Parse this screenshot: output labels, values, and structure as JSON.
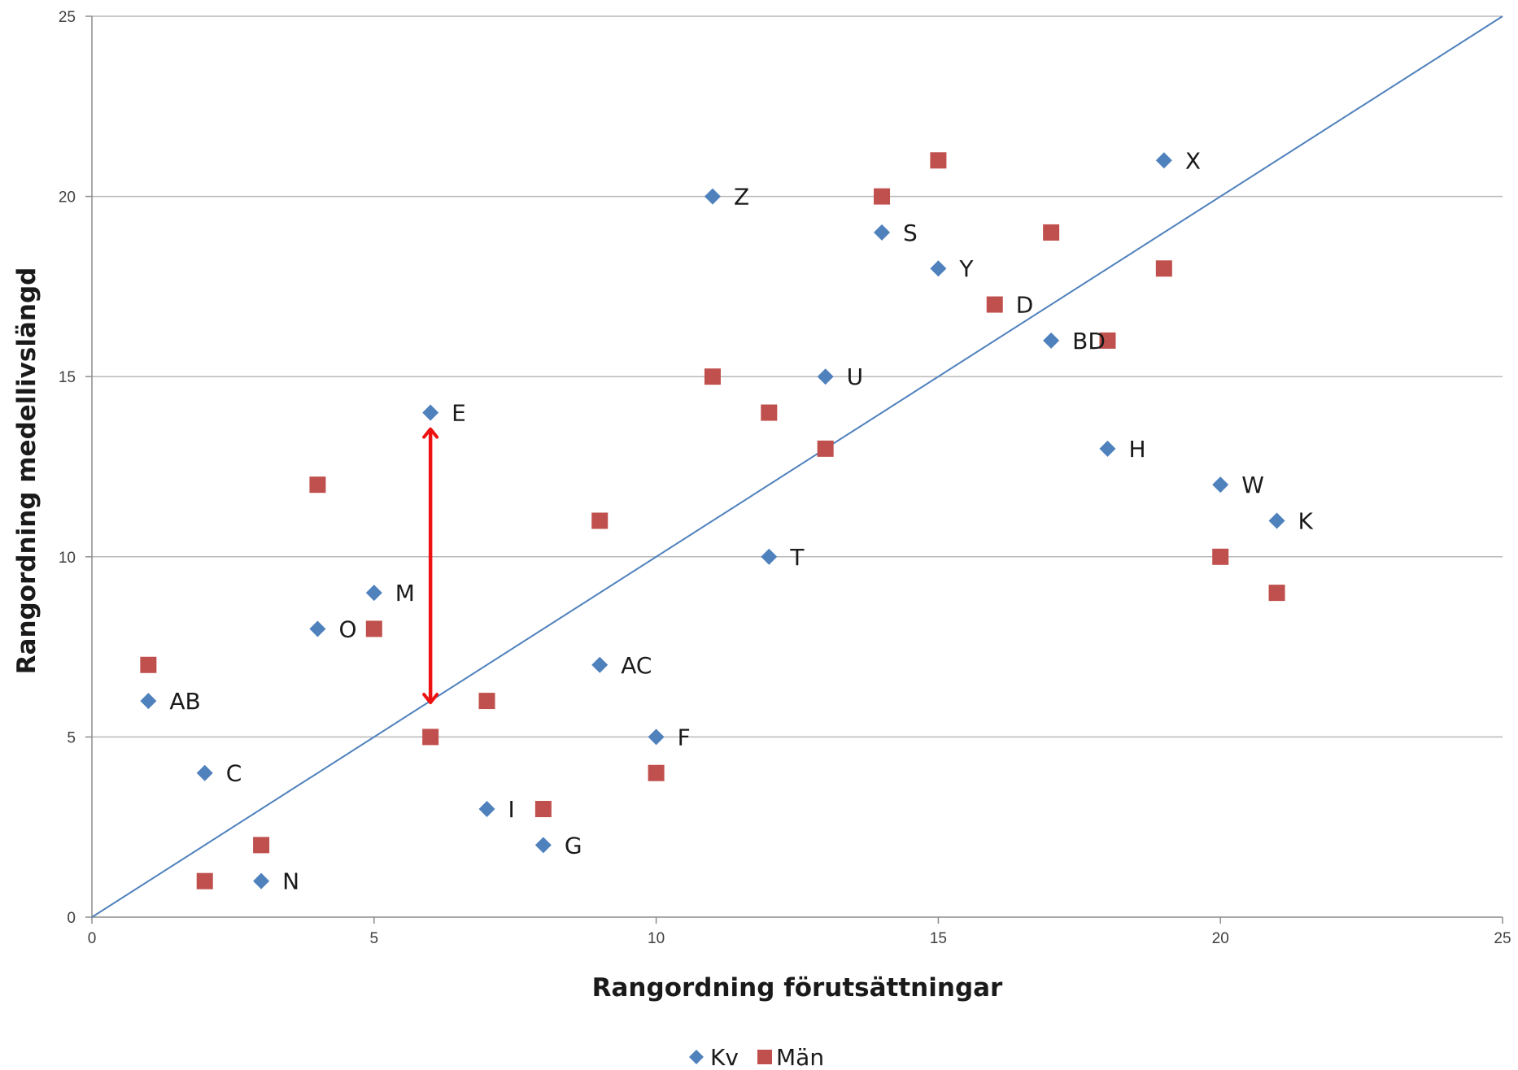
{
  "chart_data": {
    "type": "scatter",
    "title": "",
    "xlabel": "Rangordning förutsättningar",
    "ylabel": "Rangordning medellivslängd",
    "xlim": [
      0,
      25
    ],
    "ylim": [
      0,
      25
    ],
    "xticks": [
      0,
      5,
      10,
      15,
      20,
      25
    ],
    "yticks": [
      0,
      5,
      10,
      15,
      20,
      25
    ],
    "grid": "horizontal",
    "legend_position": "bottom",
    "reference_line": {
      "from": [
        0,
        0
      ],
      "to": [
        25,
        25
      ],
      "color": "#4f81bd"
    },
    "annotation_arrow": {
      "x": 6,
      "y_from": 6,
      "y_to": 13.5,
      "color": "#ee1111",
      "style": "double-headed"
    },
    "series": [
      {
        "name": "Kv",
        "marker": "diamond",
        "color": "#4f81bd",
        "points": [
          {
            "x": 1,
            "y": 6,
            "label": "AB"
          },
          {
            "x": 2,
            "y": 4,
            "label": "C"
          },
          {
            "x": 3,
            "y": 1,
            "label": "N"
          },
          {
            "x": 4,
            "y": 8,
            "label": "O"
          },
          {
            "x": 5,
            "y": 9,
            "label": "M"
          },
          {
            "x": 6,
            "y": 14,
            "label": "E"
          },
          {
            "x": 7,
            "y": 3,
            "label": "I"
          },
          {
            "x": 8,
            "y": 2,
            "label": "G"
          },
          {
            "x": 9,
            "y": 7,
            "label": "AC"
          },
          {
            "x": 10,
            "y": 5,
            "label": "F"
          },
          {
            "x": 11,
            "y": 20,
            "label": "Z"
          },
          {
            "x": 12,
            "y": 10,
            "label": "T"
          },
          {
            "x": 13,
            "y": 15,
            "label": "U"
          },
          {
            "x": 14,
            "y": 19,
            "label": "S"
          },
          {
            "x": 15,
            "y": 18,
            "label": "Y"
          },
          {
            "x": 17,
            "y": 16,
            "label": "BD"
          },
          {
            "x": 18,
            "y": 13,
            "label": "H"
          },
          {
            "x": 19,
            "y": 21,
            "label": "X"
          },
          {
            "x": 20,
            "y": 12,
            "label": "W"
          },
          {
            "x": 21,
            "y": 11,
            "label": "K"
          }
        ]
      },
      {
        "name": "Män",
        "marker": "square",
        "color": "#c0504d",
        "points": [
          {
            "x": 1,
            "y": 7
          },
          {
            "x": 2,
            "y": 1
          },
          {
            "x": 3,
            "y": 2
          },
          {
            "x": 4,
            "y": 12
          },
          {
            "x": 5,
            "y": 8
          },
          {
            "x": 6,
            "y": 5
          },
          {
            "x": 7,
            "y": 6
          },
          {
            "x": 8,
            "y": 3
          },
          {
            "x": 9,
            "y": 11
          },
          {
            "x": 10,
            "y": 4
          },
          {
            "x": 11,
            "y": 15
          },
          {
            "x": 12,
            "y": 14
          },
          {
            "x": 13,
            "y": 13
          },
          {
            "x": 14,
            "y": 20
          },
          {
            "x": 15,
            "y": 21
          },
          {
            "x": 16,
            "y": 17,
            "label": "D"
          },
          {
            "x": 17,
            "y": 19
          },
          {
            "x": 18,
            "y": 16
          },
          {
            "x": 19,
            "y": 18
          },
          {
            "x": 20,
            "y": 10
          },
          {
            "x": 21,
            "y": 9
          }
        ]
      }
    ]
  }
}
